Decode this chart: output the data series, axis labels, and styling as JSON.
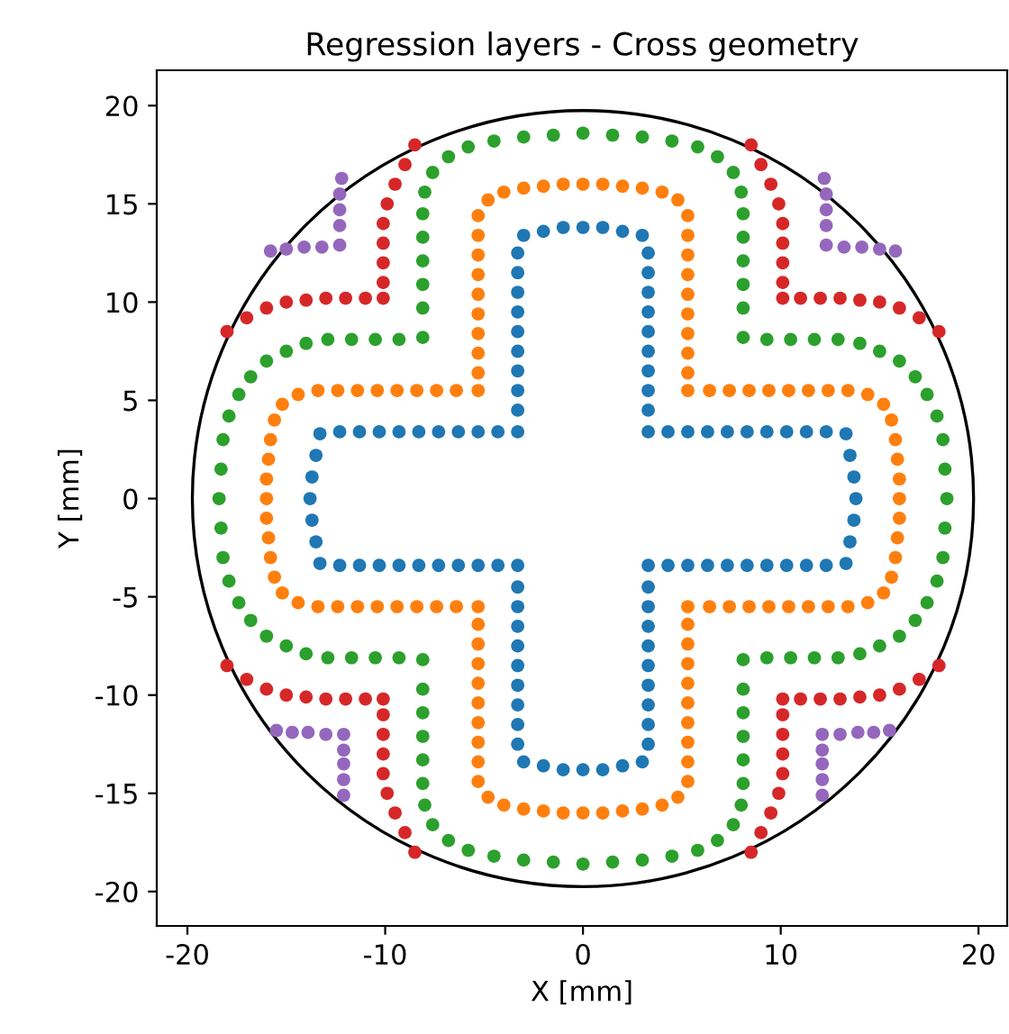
{
  "chart_data": {
    "type": "scatter",
    "title": "Regression layers - Cross geometry",
    "xlabel": "X [mm]",
    "ylabel": "Y [mm]",
    "xlim": [
      -21.55,
      21.45
    ],
    "ylim": [
      -21.75,
      21.8
    ],
    "xticks": [
      -20,
      -10,
      0,
      10,
      20
    ],
    "yticks": [
      -20,
      -15,
      -10,
      -5,
      0,
      5,
      10,
      15,
      20
    ],
    "marker": "circle",
    "series": [
      {
        "color": "#1f77b4",
        "x": [
          0,
          -1,
          -2,
          -3,
          -3.3,
          -3.3,
          -3.3,
          -3.3,
          -3.3,
          -3.3,
          -3.3,
          -3.3,
          -3.3,
          -3.3,
          -4.3,
          -5.3,
          -6.3,
          -7.3,
          -8.3,
          -9.3,
          -10.3,
          -11.3,
          -12.3,
          -13.3,
          -13.5,
          -13.7,
          -13.8,
          0,
          -1,
          -2,
          -3,
          -3.3,
          -3.3,
          -3.3,
          -3.3,
          -3.3,
          -3.3,
          -3.3,
          -3.3,
          -3.3,
          -3.3,
          -4.3,
          -5.3,
          -6.3,
          -7.3,
          -8.3,
          -9.3,
          -10.3,
          -11.3,
          -12.3,
          -13.3,
          -13.5,
          -13.7,
          1,
          2,
          3,
          3.3,
          3.3,
          3.3,
          3.3,
          3.3,
          3.3,
          3.3,
          3.3,
          3.3,
          3.3,
          4.3,
          5.3,
          6.3,
          7.3,
          8.3,
          9.3,
          10.3,
          11.3,
          12.3,
          13.3,
          13.5,
          13.7,
          13.8,
          1,
          2,
          3,
          3.3,
          3.3,
          3.3,
          3.3,
          3.3,
          3.3,
          3.3,
          3.3,
          3.3,
          3.3,
          4.3,
          5.3,
          6.3,
          7.3,
          8.3,
          9.3,
          10.3,
          11.3,
          12.3,
          13.3,
          13.5,
          13.7
        ],
        "values": [
          13.8,
          13.8,
          13.6,
          13.4,
          12.5,
          11.5,
          10.5,
          9.5,
          8.5,
          7.5,
          6.5,
          5.5,
          4.5,
          3.4,
          3.4,
          3.4,
          3.4,
          3.4,
          3.4,
          3.4,
          3.4,
          3.4,
          3.4,
          3.3,
          2.2,
          1.1,
          0,
          -13.8,
          -13.8,
          -13.6,
          -13.4,
          -12.5,
          -11.5,
          -10.5,
          -9.5,
          -8.5,
          -7.5,
          -6.5,
          -5.5,
          -4.5,
          -3.4,
          -3.4,
          -3.4,
          -3.4,
          -3.4,
          -3.4,
          -3.4,
          -3.4,
          -3.4,
          -3.4,
          -3.3,
          -2.2,
          -1.1,
          13.8,
          13.6,
          13.4,
          12.5,
          11.5,
          10.5,
          9.5,
          8.5,
          7.5,
          6.5,
          5.5,
          4.5,
          3.4,
          3.4,
          3.4,
          3.4,
          3.4,
          3.4,
          3.4,
          3.4,
          3.4,
          3.4,
          3.3,
          2.2,
          1.1,
          0,
          -13.8,
          -13.6,
          -13.4,
          -12.5,
          -11.5,
          -10.5,
          -9.5,
          -8.5,
          -7.5,
          -6.5,
          -5.5,
          -4.5,
          -3.4,
          -3.4,
          -3.4,
          -3.4,
          -3.4,
          -3.4,
          -3.4,
          -3.4,
          -3.4,
          -3.4,
          -3.3,
          -2.2,
          -1.1
        ]
      },
      {
        "color": "#ff7f0e",
        "x": [
          0,
          -1,
          -2,
          -3,
          -4,
          -4.8,
          -5.3,
          -5.3,
          -5.3,
          -5.3,
          -5.3,
          -5.3,
          -5.3,
          -5.3,
          -5.3,
          -5.3,
          -6.4,
          -7.4,
          -8.4,
          -9.4,
          -10.4,
          -11.4,
          -12.4,
          -13.4,
          -14.4,
          -15.2,
          -15.6,
          -15.8,
          -15.9,
          -16.0,
          -16.0,
          0,
          -1,
          -2,
          -3,
          -4,
          -4.8,
          -5.3,
          -5.3,
          -5.3,
          -5.3,
          -5.3,
          -5.3,
          -5.3,
          -5.3,
          -5.3,
          -5.3,
          -6.4,
          -7.4,
          -8.4,
          -9.4,
          -10.4,
          -11.4,
          -12.4,
          -13.4,
          -14.4,
          -15.2,
          -15.6,
          -15.8,
          -15.9,
          -16.0,
          1,
          2,
          3,
          4,
          4.8,
          5.3,
          5.3,
          5.3,
          5.3,
          5.3,
          5.3,
          5.3,
          5.3,
          5.3,
          5.3,
          6.4,
          7.4,
          8.4,
          9.4,
          10.4,
          11.4,
          12.4,
          13.4,
          14.4,
          15.2,
          15.6,
          15.8,
          15.9,
          16.0,
          16.0,
          1,
          2,
          3,
          4,
          4.8,
          5.3,
          5.3,
          5.3,
          5.3,
          5.3,
          5.3,
          5.3,
          5.3,
          5.3,
          5.3,
          6.4,
          7.4,
          8.4,
          9.4,
          10.4,
          11.4,
          12.4,
          13.4,
          14.4,
          15.2,
          15.6,
          15.8,
          15.9,
          16.0
        ],
        "values": [
          16.0,
          16.0,
          15.9,
          15.8,
          15.6,
          15.2,
          14.4,
          13.4,
          12.4,
          11.4,
          10.4,
          9.4,
          8.4,
          7.4,
          6.4,
          5.5,
          5.5,
          5.5,
          5.5,
          5.5,
          5.5,
          5.5,
          5.5,
          5.5,
          5.3,
          4.8,
          4.0,
          3.0,
          2.0,
          1.0,
          0,
          -16.0,
          -16.0,
          -15.9,
          -15.8,
          -15.6,
          -15.2,
          -14.4,
          -13.4,
          -12.4,
          -11.4,
          -10.4,
          -9.4,
          -8.4,
          -7.4,
          -6.4,
          -5.5,
          -5.5,
          -5.5,
          -5.5,
          -5.5,
          -5.5,
          -5.5,
          -5.5,
          -5.5,
          -5.3,
          -4.8,
          -4.0,
          -3.0,
          -2.0,
          -1.0,
          16.0,
          15.9,
          15.8,
          15.6,
          15.2,
          14.4,
          13.4,
          12.4,
          11.4,
          10.4,
          9.4,
          8.4,
          7.4,
          6.4,
          5.5,
          5.5,
          5.5,
          5.5,
          5.5,
          5.5,
          5.5,
          5.5,
          5.5,
          5.3,
          4.8,
          4.0,
          3.0,
          2.0,
          1.0,
          0,
          -16.0,
          -15.9,
          -15.8,
          -15.6,
          -15.2,
          -14.4,
          -13.4,
          -12.4,
          -11.4,
          -10.4,
          -9.4,
          -8.4,
          -7.4,
          -6.4,
          -5.5,
          -5.5,
          -5.5,
          -5.5,
          -5.5,
          -5.5,
          -5.5,
          -5.5,
          -5.5,
          -5.3,
          -4.8,
          -4.0,
          -3.0,
          -2.0,
          -1.0
        ]
      },
      {
        "color": "#2ca02c",
        "x": [
          0,
          -1.5,
          -3,
          -4.5,
          -5.8,
          -6.8,
          -7.6,
          -8.0,
          -8.1,
          -8.1,
          -8.1,
          -8.1,
          -8.1,
          -8.1,
          -9.3,
          -10.5,
          -11.7,
          -12.9,
          -14.0,
          -15.0,
          -16.0,
          -16.8,
          -17.4,
          -17.9,
          -18.2,
          -18.3,
          -18.4,
          0,
          -1.5,
          -3,
          -4.5,
          -5.8,
          -6.8,
          -7.6,
          -8.0,
          -8.1,
          -8.1,
          -8.1,
          -8.1,
          -8.1,
          -8.1,
          -9.3,
          -10.5,
          -11.7,
          -12.9,
          -14.0,
          -15.0,
          -16.0,
          -16.8,
          -17.4,
          -17.9,
          -18.2,
          -18.3,
          1.5,
          3,
          4.5,
          5.8,
          6.8,
          7.6,
          8.0,
          8.1,
          8.1,
          8.1,
          8.1,
          8.1,
          8.1,
          9.3,
          10.5,
          11.7,
          12.9,
          14.0,
          15.0,
          16.0,
          16.8,
          17.4,
          17.9,
          18.2,
          18.3,
          18.4,
          1.5,
          3,
          4.5,
          5.8,
          6.8,
          7.6,
          8.0,
          8.1,
          8.1,
          8.1,
          8.1,
          8.1,
          8.1,
          9.3,
          10.5,
          11.7,
          12.9,
          14.0,
          15.0,
          16.0,
          16.8,
          17.4,
          17.9,
          18.2,
          18.3
        ],
        "values": [
          18.6,
          18.5,
          18.4,
          18.2,
          17.9,
          17.4,
          16.6,
          15.6,
          14.5,
          13.3,
          12.1,
          10.9,
          9.7,
          8.2,
          8.1,
          8.1,
          8.1,
          8.1,
          7.9,
          7.5,
          7.0,
          6.2,
          5.3,
          4.2,
          3.0,
          1.5,
          0,
          -18.6,
          -18.5,
          -18.4,
          -18.2,
          -17.9,
          -17.4,
          -16.6,
          -15.6,
          -14.5,
          -13.3,
          -12.1,
          -10.9,
          -9.7,
          -8.2,
          -8.1,
          -8.1,
          -8.1,
          -8.1,
          -7.9,
          -7.5,
          -7.0,
          -6.2,
          -5.3,
          -4.2,
          -3.0,
          -1.5,
          18.5,
          18.4,
          18.2,
          17.9,
          17.4,
          16.6,
          15.6,
          14.5,
          13.3,
          12.1,
          10.9,
          9.7,
          8.2,
          8.1,
          8.1,
          8.1,
          8.1,
          7.9,
          7.5,
          7.0,
          6.2,
          5.3,
          4.2,
          3.0,
          1.5,
          0,
          -18.5,
          -18.4,
          -18.2,
          -17.9,
          -17.4,
          -16.6,
          -15.6,
          -14.5,
          -13.3,
          -12.1,
          -10.9,
          -9.7,
          -8.2,
          -8.1,
          -8.1,
          -8.1,
          -8.1,
          -7.9,
          -7.5,
          -7.0,
          -6.2,
          -5.3,
          -4.2,
          -3.0,
          -1.5
        ]
      },
      {
        "color": "#d62728",
        "x": [
          -8.5,
          -9.0,
          -9.5,
          -9.9,
          -10.1,
          -10.1,
          -10.1,
          -10.1,
          -10.1,
          -11.0,
          -12.0,
          -13.0,
          -14.0,
          -15.0,
          -16.0,
          -17.0,
          -18.0,
          -8.5,
          -9.0,
          -9.5,
          -9.9,
          -10.1,
          -10.1,
          -10.1,
          -10.1,
          -10.1,
          -11.0,
          -12.0,
          -13.0,
          -14.0,
          -15.0,
          -16.0,
          -17.0,
          -18.0,
          8.5,
          9.0,
          9.5,
          9.9,
          10.1,
          10.1,
          10.1,
          10.1,
          10.1,
          11.0,
          12.0,
          13.0,
          14.0,
          15.0,
          16.0,
          17.0,
          18.0,
          8.5,
          9.0,
          9.5,
          9.9,
          10.1,
          10.1,
          10.1,
          10.1,
          10.1,
          11.0,
          12.0,
          13.0,
          14.0,
          15.0,
          16.0,
          17.0,
          18.0
        ],
        "values": [
          18.0,
          17.0,
          16.0,
          15.0,
          14.0,
          13.0,
          12.0,
          11.0,
          10.2,
          10.2,
          10.2,
          10.2,
          10.1,
          10.0,
          9.7,
          9.2,
          8.5,
          -18.0,
          -17.0,
          -16.0,
          -15.0,
          -14.0,
          -13.0,
          -12.0,
          -11.0,
          -10.2,
          -10.2,
          -10.2,
          -10.2,
          -10.1,
          -10.0,
          -9.7,
          -9.2,
          -8.5,
          18.0,
          17.0,
          16.0,
          15.0,
          14.0,
          13.0,
          12.0,
          11.0,
          10.2,
          10.2,
          10.2,
          10.2,
          10.1,
          10.0,
          9.7,
          9.2,
          8.5,
          -18.0,
          -17.0,
          -16.0,
          -15.0,
          -14.0,
          -13.0,
          -12.0,
          -11.0,
          -10.2,
          -10.2,
          -10.2,
          -10.2,
          -10.1,
          -10.0,
          -9.7,
          -9.2,
          -8.5
        ]
      },
      {
        "color": "#9467bd",
        "x": [
          -12.2,
          -12.3,
          -12.3,
          -12.3,
          -12.3,
          -13.2,
          -14.1,
          -15.0,
          -15.8,
          12.2,
          12.3,
          12.3,
          12.3,
          12.3,
          13.2,
          14.1,
          15.0,
          15.8,
          -12.1,
          -12.1,
          -12.1,
          -12.1,
          -12.1,
          -13.0,
          -13.9,
          -14.7,
          -15.5,
          12.1,
          12.1,
          12.1,
          12.1,
          12.1,
          13.0,
          13.9,
          14.7,
          15.5
        ],
        "values": [
          16.3,
          15.5,
          14.7,
          13.9,
          12.9,
          12.8,
          12.8,
          12.7,
          12.6,
          16.3,
          15.5,
          14.7,
          13.9,
          12.9,
          12.8,
          12.8,
          12.7,
          12.6,
          -15.1,
          -14.3,
          -13.5,
          -12.8,
          -12.0,
          -12.0,
          -11.9,
          -11.9,
          -11.8,
          -15.1,
          -14.3,
          -13.5,
          -12.8,
          -12.0,
          -12.0,
          -11.9,
          -11.9,
          -11.8
        ]
      }
    ]
  }
}
